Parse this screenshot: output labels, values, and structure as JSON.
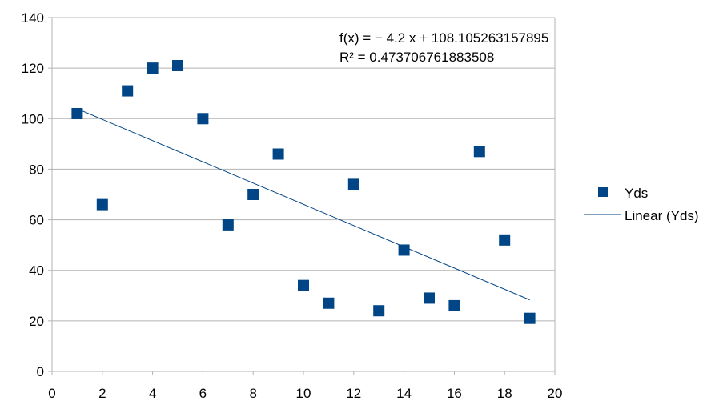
{
  "chart_data": {
    "type": "scatter",
    "title": "",
    "xlabel": "",
    "ylabel": "",
    "xlim": [
      0,
      20
    ],
    "ylim": [
      0,
      140
    ],
    "xticks": [
      0,
      2,
      4,
      6,
      8,
      10,
      12,
      14,
      16,
      18,
      20
    ],
    "yticks": [
      0,
      20,
      40,
      60,
      80,
      100,
      120,
      140
    ],
    "grid": "horizontal",
    "legend_position": "right",
    "series": [
      {
        "name": "Yds",
        "marker": "square",
        "color": "#004586",
        "x": [
          1,
          2,
          3,
          4,
          5,
          6,
          7,
          8,
          9,
          10,
          11,
          12,
          13,
          14,
          15,
          16,
          17,
          18,
          19
        ],
        "y": [
          102,
          66,
          111,
          120,
          121,
          100,
          58,
          70,
          86,
          34,
          27,
          74,
          24,
          48,
          29,
          26,
          87,
          52,
          21
        ]
      }
    ],
    "trendline": {
      "name": "Linear (Yds)",
      "type": "linear",
      "slope": -4.2,
      "intercept": 108.105263157895,
      "x_range": [
        1,
        19
      ],
      "color": "#004586",
      "equation_label": "f(x) = − 4.2 x + 108.105263157895",
      "r2_label": "R² = 0.473706761883508"
    }
  }
}
